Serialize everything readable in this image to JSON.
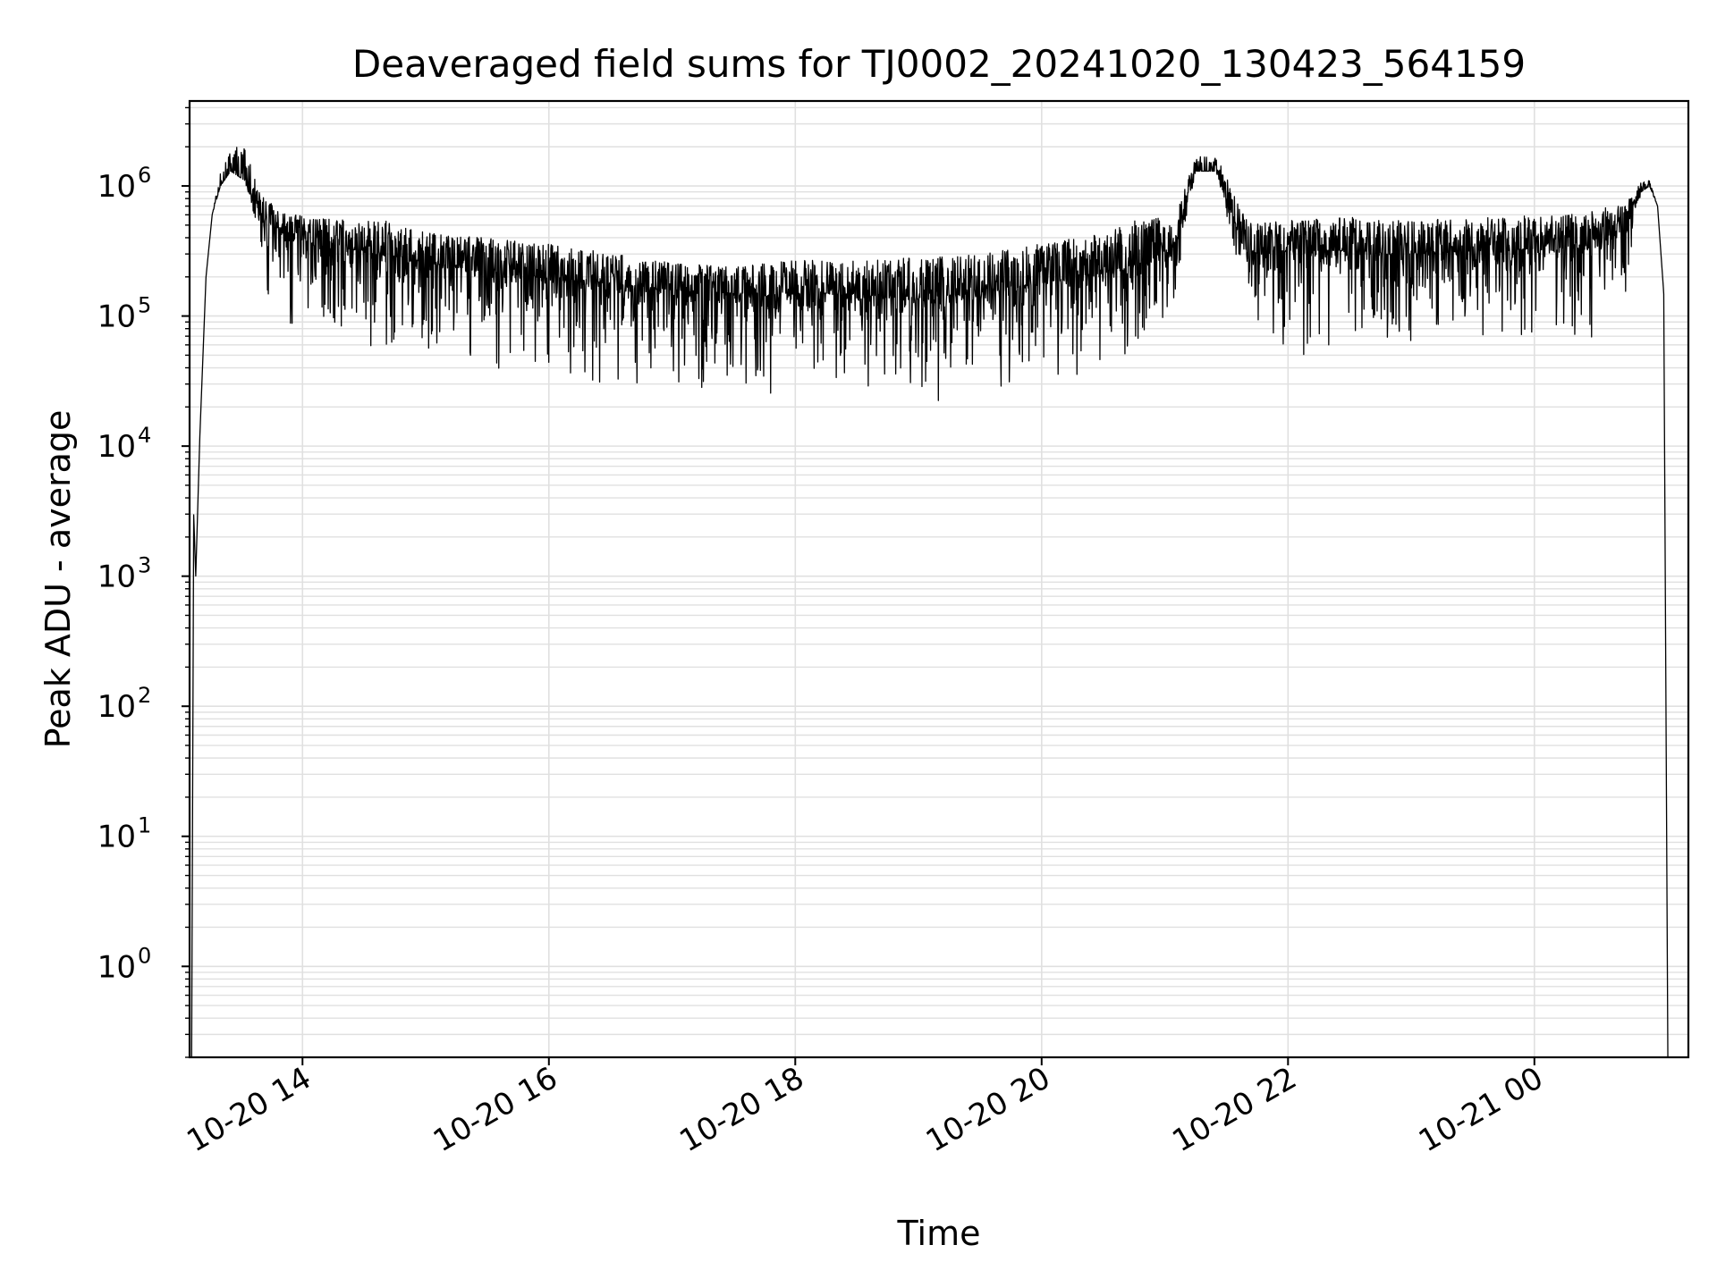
{
  "chart_data": {
    "type": "line",
    "title": "Deaveraged field sums for TJ0002_20241020_130423_564159",
    "xlabel": "Time",
    "ylabel": "Peak ADU - average",
    "yscale": "log",
    "ylim": [
      0.2,
      4500000
    ],
    "xlim": [
      "2024-10-20 13:05",
      "2024-10-21 01:15"
    ],
    "grid": true,
    "legend": "none",
    "line_color": "#000000",
    "grid_color": "#e0e0e0",
    "x_ticks": [
      {
        "value": "2024-10-20 14:00",
        "label": "10-20 14"
      },
      {
        "value": "2024-10-20 16:00",
        "label": "10-20 16"
      },
      {
        "value": "2024-10-20 18:00",
        "label": "10-20 18"
      },
      {
        "value": "2024-10-20 20:00",
        "label": "10-20 20"
      },
      {
        "value": "2024-10-20 22:00",
        "label": "10-20 22"
      },
      {
        "value": "2024-10-21 00:00",
        "label": "10-21 00"
      }
    ],
    "y_ticks": [
      {
        "value": 1,
        "base": "10",
        "exp": "0"
      },
      {
        "value": 10,
        "base": "10",
        "exp": "1"
      },
      {
        "value": 100,
        "base": "10",
        "exp": "2"
      },
      {
        "value": 1000,
        "base": "10",
        "exp": "3"
      },
      {
        "value": 10000,
        "base": "10",
        "exp": "4"
      },
      {
        "value": 100000,
        "base": "10",
        "exp": "5"
      },
      {
        "value": 1000000,
        "base": "10",
        "exp": "6"
      }
    ],
    "series": [
      {
        "x": [
          "2024-10-20 13:06",
          "2024-10-20 13:07",
          "2024-10-20 13:08",
          "2024-10-20 13:10",
          "2024-10-20 13:13",
          "2024-10-20 13:16",
          "2024-10-20 13:20",
          "2024-10-20 13:25",
          "2024-10-20 13:32",
          "2024-10-20 13:40",
          "2024-10-20 13:50",
          "2024-10-20 14:10",
          "2024-10-20 14:40",
          "2024-10-20 15:00",
          "2024-10-20 15:30",
          "2024-10-20 16:00",
          "2024-10-20 16:30",
          "2024-10-20 17:00",
          "2024-10-20 17:30",
          "2024-10-20 18:00",
          "2024-10-20 18:30",
          "2024-10-20 19:00",
          "2024-10-20 19:30",
          "2024-10-20 20:00",
          "2024-10-20 20:30",
          "2024-10-20 20:50",
          "2024-10-20 21:05",
          "2024-10-20 21:15",
          "2024-10-20 21:25",
          "2024-10-20 21:40",
          "2024-10-20 22:00",
          "2024-10-20 22:30",
          "2024-10-20 23:00",
          "2024-10-20 23:30",
          "2024-10-21 00:00",
          "2024-10-21 00:30",
          "2024-10-21 00:45",
          "2024-10-21 00:52",
          "2024-10-21 00:56",
          "2024-10-21 01:00",
          "2024-10-21 01:03",
          "2024-10-21 01:05"
        ],
        "values": [
          0.2,
          3000,
          1000,
          12000,
          200000,
          600000,
          1000000,
          1300000,
          1100000,
          600000,
          420000,
          350000,
          300000,
          260000,
          220000,
          200000,
          180000,
          160000,
          150000,
          150000,
          150000,
          140000,
          150000,
          180000,
          220000,
          260000,
          350000,
          1300000,
          1300000,
          300000,
          320000,
          320000,
          300000,
          320000,
          330000,
          340000,
          500000,
          900000,
          1000000,
          700000,
          150000,
          0.2
        ],
        "noise_low": [
          1,
          1,
          1,
          1,
          1,
          1,
          1,
          1,
          1,
          0.3,
          0.15,
          0.15,
          0.15,
          0.15,
          0.18,
          0.15,
          0.15,
          0.15,
          0.2,
          0.15,
          0.2,
          0.15,
          0.15,
          0.2,
          0.15,
          0.2,
          0.2,
          1,
          1,
          0.2,
          0.15,
          0.15,
          0.2,
          0.2,
          0.2,
          0.1,
          0.3,
          1,
          1,
          1,
          1,
          1
        ],
        "noise_high": [
          1,
          1,
          1,
          1,
          1,
          1,
          1.3,
          1.6,
          1.8,
          1.4,
          1.5,
          1.6,
          1.8,
          1.7,
          1.8,
          1.8,
          1.7,
          1.6,
          1.6,
          1.8,
          1.8,
          2,
          2,
          2,
          2,
          2.2,
          1.6,
          1.3,
          1.3,
          1.8,
          1.7,
          1.8,
          1.8,
          1.8,
          1.8,
          1.9,
          1.5,
          1.2,
          1.1,
          1,
          1,
          1
        ]
      }
    ]
  }
}
